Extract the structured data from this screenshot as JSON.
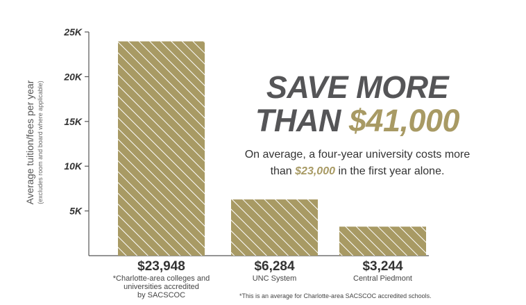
{
  "chart_data": {
    "type": "bar",
    "categories": [
      "*Charlotte-area colleges and universities accredited by SACSCOC",
      "UNC System",
      "Central Piedmont"
    ],
    "values": [
      23948,
      6284,
      3244
    ],
    "value_labels": [
      "$23,948",
      "$6,284",
      "$3,244"
    ],
    "ylabel": "Average tuition/fees per year",
    "ylabel_note": "(excludes room and board where applicable)",
    "yticks": [
      {
        "value": 5000,
        "label": "5K"
      },
      {
        "value": 10000,
        "label": "10K"
      },
      {
        "value": 15000,
        "label": "15K"
      },
      {
        "value": 20000,
        "label": "20K"
      },
      {
        "value": 25000,
        "label": "25K"
      }
    ],
    "ylim": [
      0,
      25000
    ],
    "grid": false,
    "bar_color": "#a89a64",
    "bar_pattern": "diagonal white stripes",
    "footnote": "*This is an average for Charlotte-area SACSCOC accredited schools."
  },
  "callout": {
    "headline_line1": "SAVE MORE",
    "headline_line2_prefix": "THAN ",
    "headline_line2_amount": "$41,000",
    "sub_line1": "On average, a four-year university costs more",
    "sub_line2_prefix": "than ",
    "sub_line2_amount": "$23,000",
    "sub_line2_suffix": " in the first year alone.",
    "accent_color": "#a89a64",
    "headline_color": "#555557"
  }
}
